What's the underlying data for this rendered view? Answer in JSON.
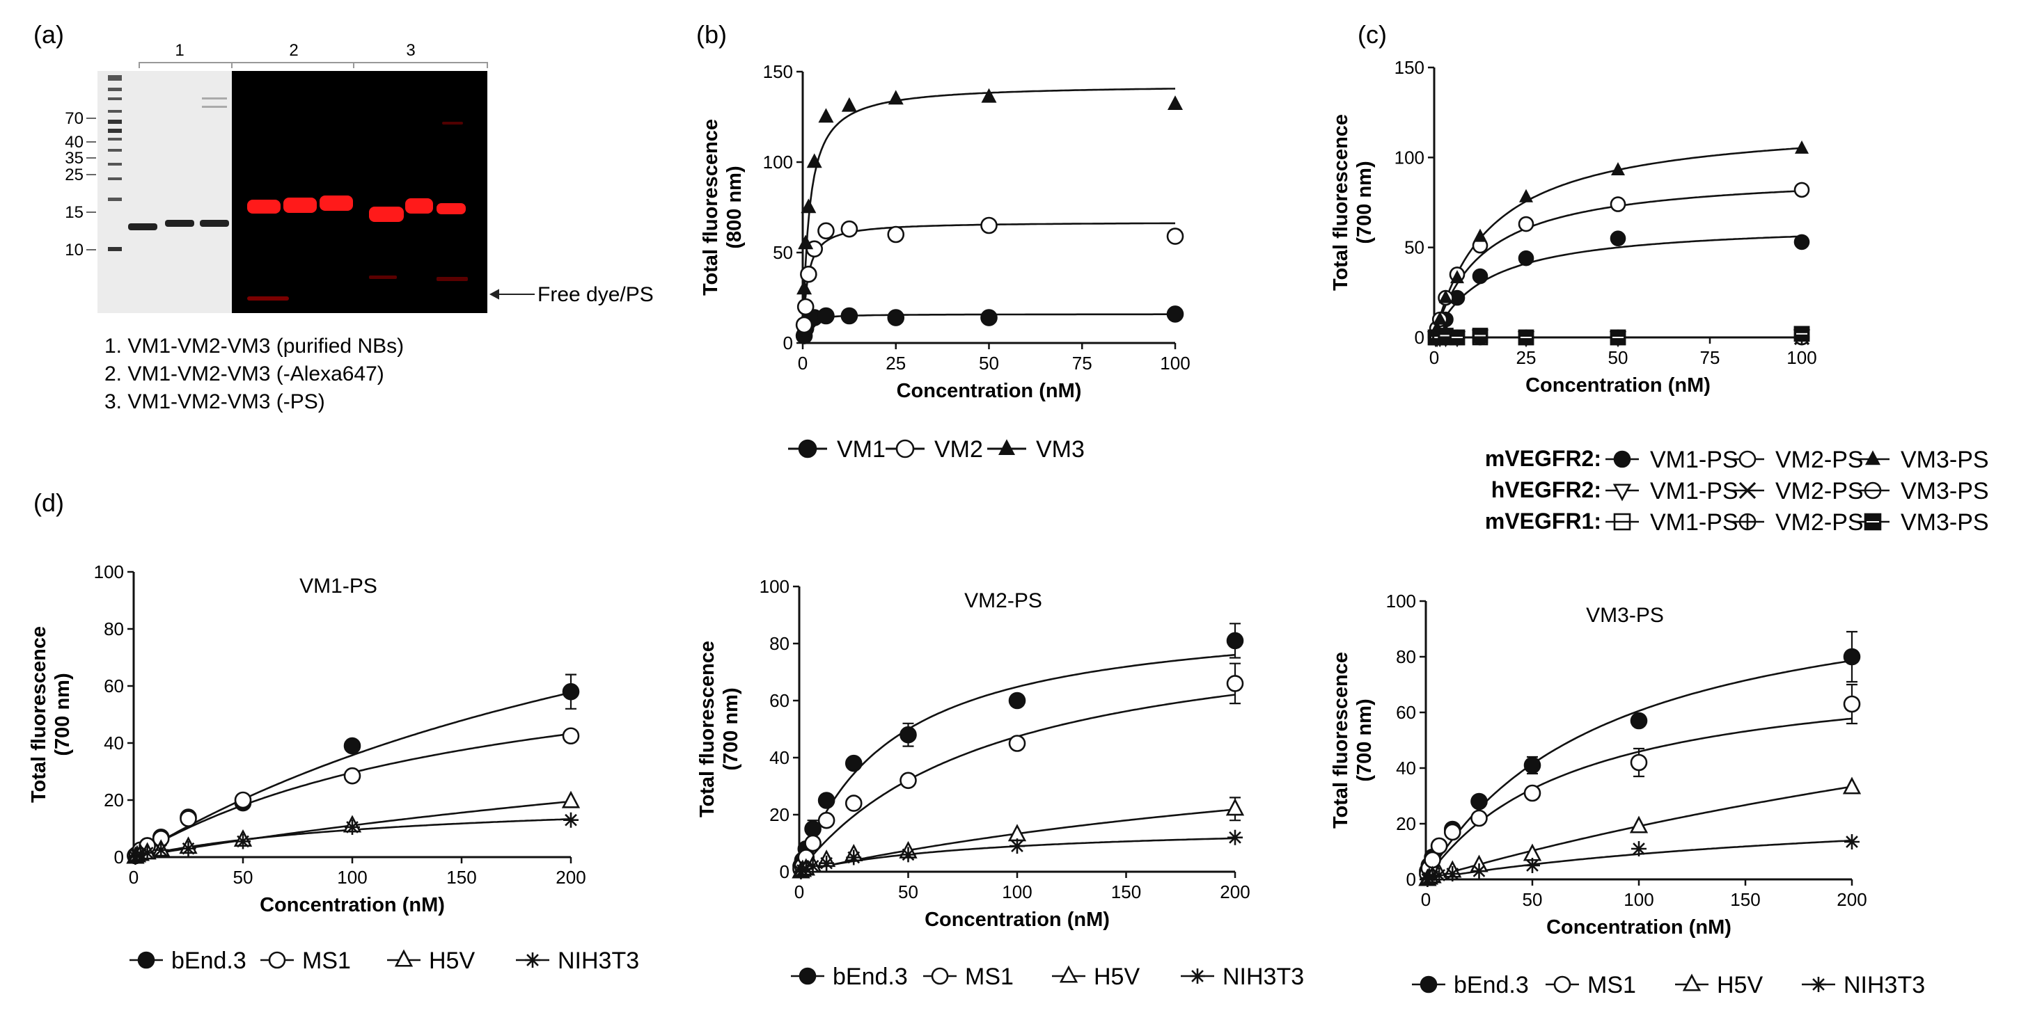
{
  "figure": {
    "panel_labels": [
      "(a)",
      "(b)",
      "(c)",
      "(d)"
    ]
  },
  "gel": {
    "lane_groups": [
      "1",
      "2",
      "3"
    ],
    "ladder_labels": [
      "70",
      "40",
      "35",
      "25",
      "15",
      "10"
    ],
    "free_dye_label": "Free dye/PS",
    "captions": [
      "1. VM1-VM2-VM3 (purified NBs)",
      "2. VM1-VM2-VM3 (-Alexa647)",
      "3. VM1-VM2-VM3 (-PS)"
    ],
    "colors": {
      "fluor_band": "#ff1a1a",
      "stain_band": "#222222",
      "dark_bg": "#000000"
    }
  },
  "chart_data": [
    {
      "id": "b",
      "type": "scatter",
      "subtitle": "",
      "xlabel": "Concentration (nM)",
      "ylabel": [
        "Total fluorescence",
        "(800 nm)"
      ],
      "xlim": [
        0,
        100
      ],
      "ylim": [
        0,
        150
      ],
      "xticks": [
        0,
        25,
        50,
        75,
        100
      ],
      "yticks": [
        0,
        50,
        100,
        150
      ],
      "x": [
        0.39,
        0.78,
        1.56,
        3.125,
        6.25,
        12.5,
        25,
        50,
        100
      ],
      "series": [
        {
          "name": "VM1",
          "marker": "filled-circle",
          "values": [
            4,
            8,
            12,
            14,
            15,
            15,
            14,
            14,
            16
          ],
          "bmax": 16,
          "kd": 0.8
        },
        {
          "name": "VM2",
          "marker": "open-circle",
          "values": [
            10,
            20,
            38,
            52,
            62,
            63,
            60,
            65,
            59
          ],
          "bmax": 67,
          "kd": 1.2
        },
        {
          "name": "VM3",
          "marker": "filled-triangle",
          "values": [
            30,
            55,
            75,
            100,
            125,
            131,
            135,
            136,
            132
          ],
          "bmax": 143,
          "kd": 1.7
        }
      ],
      "legend_position": "bottom"
    },
    {
      "id": "c",
      "type": "scatter",
      "subtitle": "",
      "xlabel": "Concentration (nM)",
      "ylabel": [
        "Total fluorescence",
        "(700 nm)"
      ],
      "xlim": [
        0,
        100
      ],
      "ylim": [
        0,
        150
      ],
      "xticks": [
        0,
        25,
        50,
        75,
        100
      ],
      "yticks": [
        0,
        50,
        100,
        150
      ],
      "x": [
        0.39,
        0.78,
        1.56,
        3.125,
        6.25,
        12.5,
        25,
        50,
        100
      ],
      "series": [
        {
          "name": "VM1-PS",
          "group": "mVEGFR2",
          "marker": "filled-circle",
          "values": [
            1,
            3,
            6,
            10,
            22,
            34,
            44,
            55,
            53
          ],
          "bmax": 64,
          "kd": 14
        },
        {
          "name": "VM2-PS",
          "group": "mVEGFR2",
          "marker": "open-circle",
          "values": [
            2,
            5,
            10,
            22,
            35,
            51,
            63,
            74,
            82
          ],
          "bmax": 92,
          "kd": 13
        },
        {
          "name": "VM3-PS",
          "group": "mVEGFR2",
          "marker": "filled-triangle",
          "values": [
            2,
            5,
            10,
            22,
            33,
            56,
            78,
            93,
            105
          ],
          "bmax": 121,
          "kd": 15
        },
        {
          "name": "VM1-PS",
          "group": "hVEGFR2",
          "marker": "open-triangle-down",
          "values": [
            0,
            0,
            0,
            0,
            0,
            1,
            0,
            0,
            1
          ]
        },
        {
          "name": "VM2-PS",
          "group": "hVEGFR2",
          "marker": "x-cross",
          "values": [
            0,
            0,
            0,
            0,
            0,
            0,
            0,
            0,
            0
          ]
        },
        {
          "name": "VM3-PS",
          "group": "hVEGFR2",
          "marker": "circle-hline",
          "values": [
            0,
            0,
            0,
            0,
            0,
            0,
            0,
            0,
            0
          ]
        },
        {
          "name": "VM1-PS",
          "group": "mVEGFR1",
          "marker": "open-square-hline",
          "values": [
            0,
            0,
            0,
            0,
            0,
            0,
            0,
            0,
            2
          ]
        },
        {
          "name": "VM2-PS",
          "group": "mVEGFR1",
          "marker": "circle-cross",
          "values": [
            0,
            0,
            0,
            0,
            0,
            0,
            0,
            0,
            0
          ]
        },
        {
          "name": "VM3-PS",
          "group": "mVEGFR1",
          "marker": "filled-square-hline",
          "values": [
            0,
            0,
            0,
            1,
            0,
            1,
            0,
            0,
            2
          ]
        }
      ],
      "legend_groups": [
        "mVEGFR2:",
        "hVEGFR2:",
        "mVEGFR1:"
      ],
      "legend_position": "bottom"
    },
    {
      "id": "d1",
      "type": "scatter",
      "subtitle": "VM1-PS",
      "xlabel": "Concentration (nM)",
      "ylabel": [
        "Total fluorescence",
        "(700 nm)"
      ],
      "xlim": [
        0,
        200
      ],
      "ylim": [
        0,
        100
      ],
      "xticks": [
        0,
        50,
        100,
        150,
        200
      ],
      "yticks": [
        0,
        20,
        40,
        60,
        80,
        100
      ],
      "x": [
        0.78,
        1.56,
        3.125,
        6.25,
        12.5,
        25,
        50,
        100,
        200
      ],
      "series": [
        {
          "name": "bEnd.3",
          "marker": "filled-circle",
          "values": [
            0.5,
            1,
            2,
            4,
            7,
            14,
            19,
            39,
            58
          ],
          "bmax": 150,
          "kd": 320
        },
        {
          "name": "MS1",
          "marker": "open-circle",
          "values": [
            0.5,
            1,
            2.5,
            4,
            6.5,
            13.5,
            20,
            28.5,
            42.5
          ],
          "bmax": 80,
          "kd": 170
        },
        {
          "name": "H5V",
          "marker": "open-triangle",
          "values": [
            0,
            0.5,
            1,
            1.5,
            2.5,
            3.5,
            6,
            11,
            19.5
          ],
          "bmax": 80,
          "kd": 620
        },
        {
          "name": "NIH3T3",
          "marker": "star",
          "values": [
            0,
            0.5,
            1,
            1.5,
            2.5,
            3,
            5.5,
            10.5,
            13
          ],
          "bmax": 22,
          "kd": 130
        }
      ],
      "error_bars": {
        "bEnd.3": {
          "200": 6,
          "50": 2
        },
        "MS1": {
          "50": 2
        }
      },
      "legend_position": "bottom"
    },
    {
      "id": "d2",
      "type": "scatter",
      "subtitle": "VM2-PS",
      "xlabel": "Concentration (nM)",
      "ylabel": [
        "Total fluorescence",
        "(700 nm)"
      ],
      "xlim": [
        0,
        200
      ],
      "ylim": [
        0,
        100
      ],
      "xticks": [
        0,
        50,
        100,
        150,
        200
      ],
      "yticks": [
        0,
        20,
        40,
        60,
        80,
        100
      ],
      "x": [
        0.78,
        1.56,
        3.125,
        6.25,
        12.5,
        25,
        50,
        100,
        200
      ],
      "series": [
        {
          "name": "bEnd.3",
          "marker": "filled-circle",
          "values": [
            2,
            4,
            8,
            15,
            25,
            38,
            48,
            60,
            81
          ],
          "bmax": 92,
          "kd": 42
        },
        {
          "name": "MS1",
          "marker": "open-circle",
          "values": [
            1,
            2,
            5,
            10,
            18,
            24,
            32,
            45,
            66
          ],
          "bmax": 90,
          "kd": 90
        },
        {
          "name": "H5V",
          "marker": "open-triangle",
          "values": [
            0,
            0.5,
            1,
            2,
            4,
            6,
            7,
            13,
            22
          ],
          "bmax": 60,
          "kd": 350
        },
        {
          "name": "NIH3T3",
          "marker": "star",
          "values": [
            0,
            0.5,
            1,
            2,
            3,
            5,
            6,
            9,
            12
          ],
          "bmax": 17,
          "kd": 90
        }
      ],
      "error_bars": {
        "bEnd.3": {
          "200": 6,
          "50": 4,
          "6.25": 3
        },
        "MS1": {
          "200": 7
        },
        "H5V": {
          "200": 4
        }
      },
      "legend_position": "bottom"
    },
    {
      "id": "d3",
      "type": "scatter",
      "subtitle": "VM3-PS",
      "xlabel": "Concentration (nM)",
      "ylabel": [
        "Total fluorescence",
        "(700 nm)"
      ],
      "xlim": [
        0,
        200
      ],
      "ylim": [
        0,
        100
      ],
      "xticks": [
        0,
        50,
        100,
        150,
        200
      ],
      "yticks": [
        0,
        20,
        40,
        60,
        80,
        100
      ],
      "x": [
        0.78,
        1.56,
        3.125,
        6.25,
        12.5,
        25,
        50,
        100,
        200
      ],
      "series": [
        {
          "name": "bEnd.3",
          "marker": "filled-circle",
          "values": [
            3,
            5,
            8,
            12,
            18,
            28,
            41,
            57,
            80
          ],
          "bmax": 112,
          "kd": 85
        },
        {
          "name": "MS1",
          "marker": "open-circle",
          "values": [
            2,
            4,
            7,
            12,
            17,
            22,
            31,
            42,
            63
          ],
          "bmax": 78,
          "kd": 70
        },
        {
          "name": "H5V",
          "marker": "open-triangle",
          "values": [
            0,
            0.5,
            1,
            2,
            3,
            5,
            9,
            19,
            33
          ],
          "bmax": 130,
          "kd": 580
        },
        {
          "name": "NIH3T3",
          "marker": "star",
          "values": [
            0,
            0.5,
            1,
            1.5,
            2,
            3,
            5,
            11,
            13.5
          ],
          "bmax": 30,
          "kd": 230
        }
      ],
      "error_bars": {
        "bEnd.3": {
          "200": 9,
          "50": 3
        },
        "MS1": {
          "200": 7,
          "100": 5
        }
      },
      "legend_position": "bottom"
    }
  ]
}
